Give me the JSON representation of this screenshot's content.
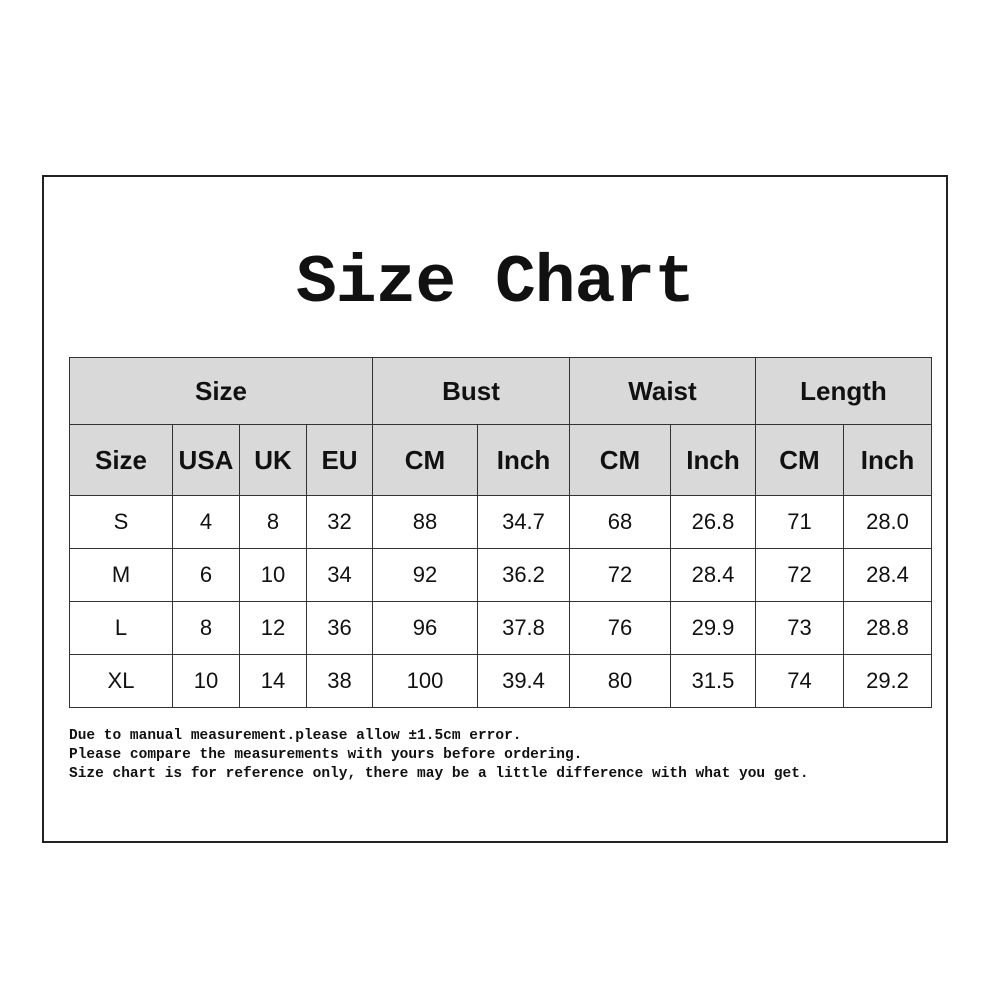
{
  "title": "Size Chart",
  "table": {
    "group_headers": [
      "Size",
      "Bust",
      "Waist",
      "Length"
    ],
    "sub_headers": [
      "Size",
      "USA",
      "UK",
      "EU",
      "CM",
      "Inch",
      "CM",
      "Inch",
      "CM",
      "Inch"
    ],
    "rows": [
      [
        "S",
        "4",
        "8",
        "32",
        "88",
        "34.7",
        "68",
        "26.8",
        "71",
        "28.0"
      ],
      [
        "M",
        "6",
        "10",
        "34",
        "92",
        "36.2",
        "72",
        "28.4",
        "72",
        "28.4"
      ],
      [
        "L",
        "8",
        "12",
        "36",
        "96",
        "37.8",
        "76",
        "29.9",
        "73",
        "28.8"
      ],
      [
        "XL",
        "10",
        "14",
        "38",
        "100",
        "39.4",
        "80",
        "31.5",
        "74",
        "29.2"
      ]
    ]
  },
  "notes": [
    "Due to manual measurement.please allow ±1.5cm error.",
    "Please compare the measurements with yours before ordering.",
    "Size chart is for reference only, there may be a little difference with what you get."
  ],
  "colors": {
    "header_bg": "#d9d9d9",
    "border": "#333333"
  }
}
